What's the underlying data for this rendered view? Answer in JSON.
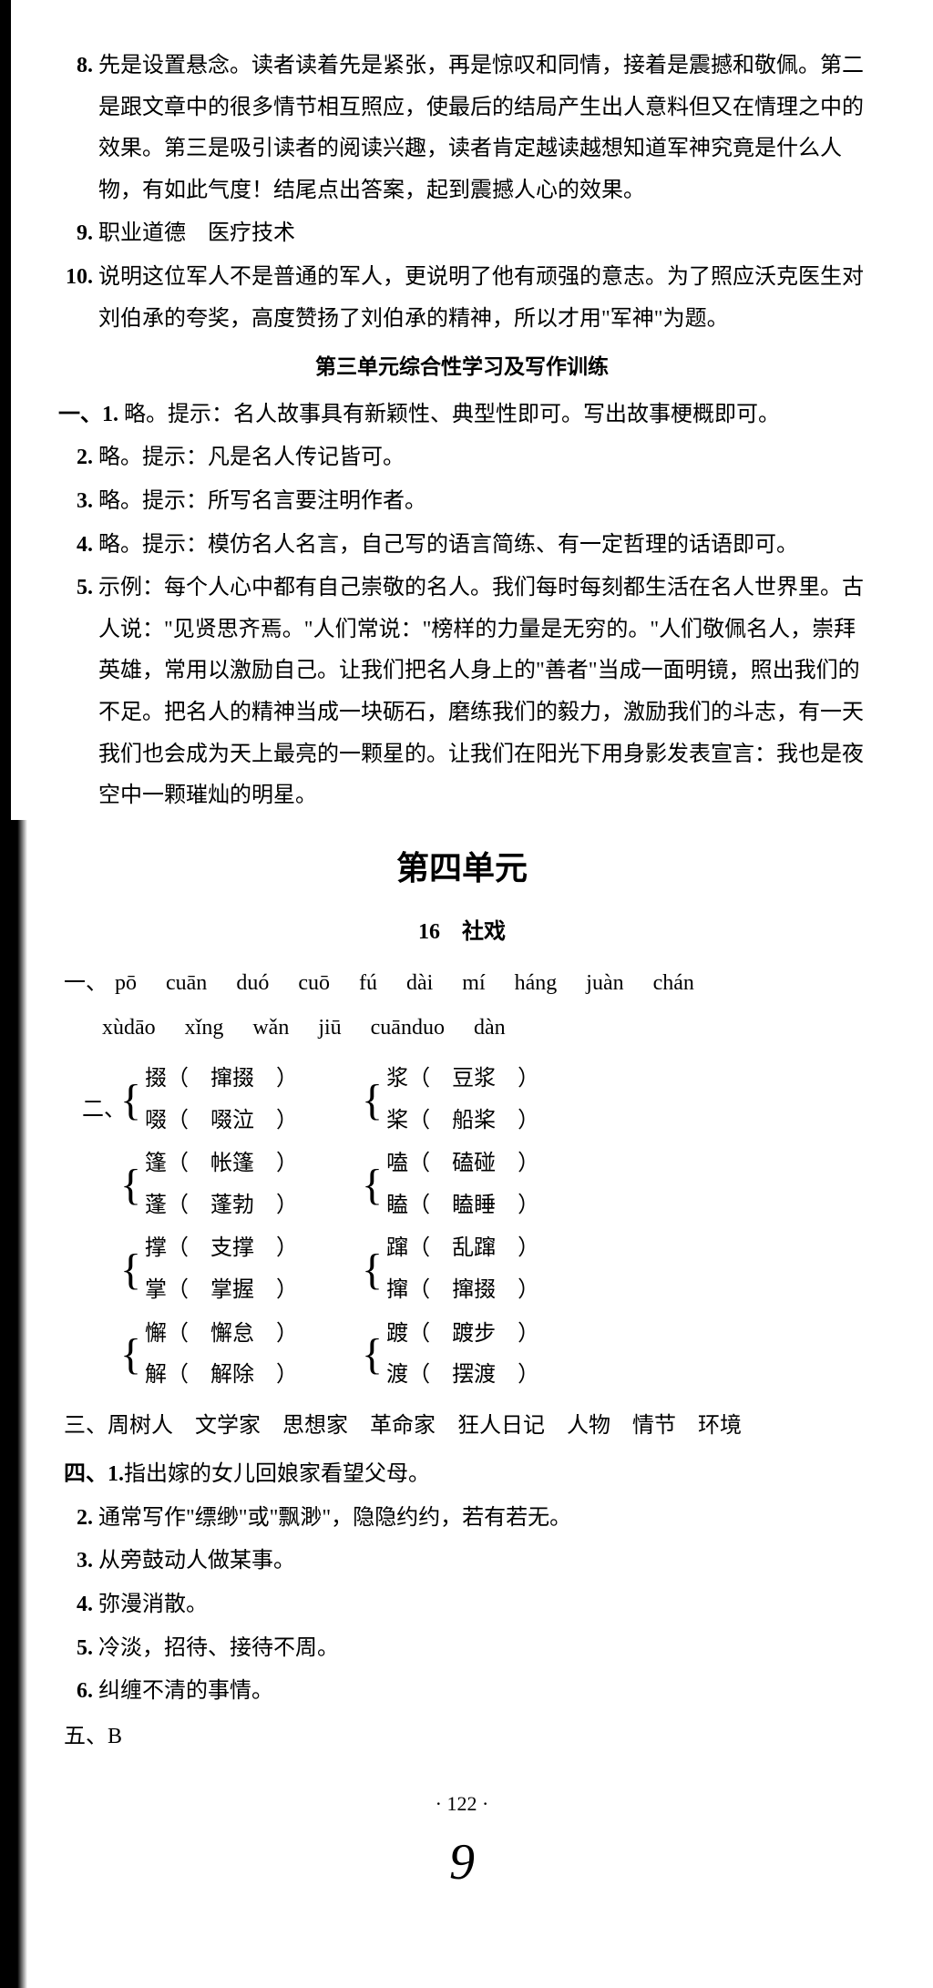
{
  "items_top": [
    {
      "num": "8.",
      "text": "先是设置悬念。读者读着先是紧张，再是惊叹和同情，接着是震撼和敬佩。第二是跟文章中的很多情节相互照应，使最后的结局产生出人意料但又在情理之中的效果。第三是吸引读者的阅读兴趣，读者肯定越读越想知道军神究竟是什么人物，有如此气度！结尾点出答案，起到震撼人心的效果。"
    },
    {
      "num": "9.",
      "text": "职业道德　医疗技术"
    },
    {
      "num": "10.",
      "text": "说明这位军人不是普通的军人，更说明了他有顽强的意志。为了照应沃克医生对刘伯承的夸奖，高度赞扬了刘伯承的精神，所以才用\"军神\"为题。"
    }
  ],
  "section_sub": "第三单元综合性学习及写作训练",
  "items_section1": [
    {
      "num": "一、1.",
      "text": "略。提示：名人故事具有新颖性、典型性即可。写出故事梗概即可。"
    },
    {
      "num": "2.",
      "text": "略。提示：凡是名人传记皆可。"
    },
    {
      "num": "3.",
      "text": "略。提示：所写名言要注明作者。"
    },
    {
      "num": "4.",
      "text": "略。提示：模仿名人名言，自己写的语言简练、有一定哲理的话语即可。"
    },
    {
      "num": "5.",
      "text": "示例：每个人心中都有自己崇敬的名人。我们每时每刻都生活在名人世界里。古人说：\"见贤思齐焉。\"人们常说：\"榜样的力量是无穷的。\"人们敬佩名人，崇拜英雄，常用以激励自己。让我们把名人身上的\"善者\"当成一面明镜，照出我们的不足。把名人的精神当成一块砺石，磨练我们的毅力，激励我们的斗志，有一天我们也会成为天上最亮的一颗星的。让我们在阳光下用身影发表宣言：我也是夜空中一颗璀灿的明星。"
    }
  ],
  "unit_title": "第四单元",
  "lesson_title": "16　社戏",
  "pinyin_label": "一、",
  "pinyin_row1": [
    "pō",
    "cuān",
    "duó",
    "cuō",
    "fú",
    "dài",
    "mí",
    "háng",
    "juàn",
    "chán"
  ],
  "pinyin_row2": [
    "xùdāo",
    "xǐng",
    "wǎn",
    "jiū",
    "cuānduo",
    "dàn"
  ],
  "char_label": "二、",
  "char_pairs": [
    [
      {
        "top": "掇（　撺掇　）",
        "bottom": "啜（　啜泣　）"
      },
      {
        "top": "浆（　豆浆　）",
        "bottom": "桨（　船桨　）"
      }
    ],
    [
      {
        "top": "篷（　帐篷　）",
        "bottom": "蓬（　蓬勃　）"
      },
      {
        "top": "嗑（　磕碰　）",
        "bottom": "瞌（　瞌睡　）"
      }
    ],
    [
      {
        "top": "撑（　支撑　）",
        "bottom": "掌（　掌握　）"
      },
      {
        "top": "蹿（　乱蹿　）",
        "bottom": "撺（　撺掇　）"
      }
    ],
    [
      {
        "top": "懈（　懈怠　）",
        "bottom": "解（　解除　）"
      },
      {
        "top": "踱（　踱步　）",
        "bottom": "渡（　摆渡　）"
      }
    ]
  ],
  "section3_label": "三、",
  "section3_text": "周树人　文学家　思想家　革命家　狂人日记　人物　情节　环境",
  "section4": [
    {
      "num": "四、1.",
      "text": "指出嫁的女儿回娘家看望父母。"
    },
    {
      "num": "2.",
      "text": "通常写作\"缥缈\"或\"飘渺\"，隐隐约约，若有若无。"
    },
    {
      "num": "3.",
      "text": "从旁鼓动人做某事。"
    },
    {
      "num": "4.",
      "text": "弥漫消散。"
    },
    {
      "num": "5.",
      "text": "冷淡，招待、接待不周。"
    },
    {
      "num": "6.",
      "text": "纠缠不清的事情。"
    }
  ],
  "section5": "五、B",
  "page_num": "· 122 ·",
  "handwritten": "9"
}
